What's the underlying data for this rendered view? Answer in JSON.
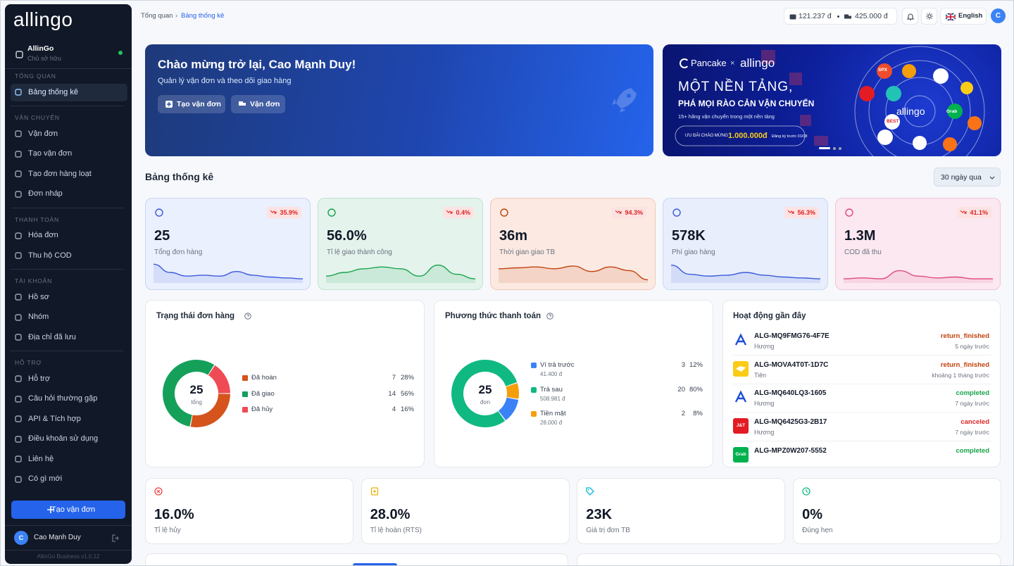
{
  "sidebar": {
    "logo": "allingo",
    "workspace": {
      "name": "AllinGo",
      "role": "Chủ sở hữu"
    },
    "sections": [
      {
        "title": "TỔNG QUAN",
        "items": [
          "Bảng thống kê"
        ]
      },
      {
        "title": "VẬN CHUYỂN",
        "items": [
          "Vận đơn",
          "Tạo vận đơn",
          "Tạo đơn hàng loạt",
          "Đơn nháp"
        ]
      },
      {
        "title": "THANH TOÁN",
        "items": [
          "Hóa đơn",
          "Thu hộ COD"
        ]
      },
      {
        "title": "TÀI KHOẢN",
        "items": [
          "Hồ sơ",
          "Nhóm",
          "Địa chỉ đã lưu"
        ]
      },
      {
        "title": "HỖ TRỢ",
        "items": [
          "Hỗ trợ",
          "Câu hỏi thường gặp",
          "API & Tích hợp",
          "Điều khoản sử dụng",
          "Liên hệ",
          "Có gì mới"
        ]
      }
    ],
    "cta": "Tạo vận đơn",
    "user": {
      "initial": "C",
      "name": "Cao Mạnh Duy"
    },
    "version": "AllinGo Business v1.0.12"
  },
  "topbar": {
    "breadcrumb": [
      "Tổng quan",
      "Bảng thống kê"
    ],
    "breadcrumb_sep": "›",
    "balances": [
      "121.237 đ",
      "425.000 đ"
    ],
    "language": "English",
    "avatar": "C"
  },
  "welcome": {
    "title": "Chào mừng trở lại, Cao Mạnh Duy!",
    "subtitle": "Quản lý vận đơn và theo dõi giao hàng",
    "buttons": [
      "Tạo vận đơn",
      "Vận đơn"
    ]
  },
  "banner": {
    "brand": "Pancake",
    "x": "×",
    "partner": "allingo",
    "headline": "MỘT NỀN TẢNG,",
    "subhead": "PHÁ MỌI RÀO CẢN VẬN CHUYỂN",
    "note": "15+ hãng vận chuyển trong một nền tảng",
    "promo": "ƯU ĐÃI CHÀO MỪNG",
    "amount": "1.000.000đ",
    "promo_tail": "Đăng ký trước 01/08",
    "hub": "allingo",
    "carriers": [
      "SPX",
      "Grab",
      "BEST"
    ]
  },
  "stats": {
    "title": "Bảng thống kê",
    "period": "30 ngày qua",
    "cards": [
      {
        "value": "25",
        "label": "Tổng đơn hàng",
        "change": "35.9%"
      },
      {
        "value": "56.0%",
        "label": "Tỉ lệ giao thành công",
        "change": "0.4%"
      },
      {
        "value": "36m",
        "label": "Thời gian giao TB",
        "change": "94.3%"
      },
      {
        "value": "578K",
        "label": "Phí giao hàng",
        "change": "56.3%"
      },
      {
        "value": "1.3M",
        "label": "COD đã thu",
        "change": "41.1%"
      }
    ]
  },
  "order_status": {
    "title": "Trạng thái đơn hàng",
    "total": 25,
    "total_label": "tổng",
    "items": [
      {
        "name": "Đã hoàn",
        "count": 7,
        "percent": "28%",
        "color": "#d4541c"
      },
      {
        "name": "Đã giao",
        "count": 14,
        "percent": "56%",
        "color": "#15a05a"
      },
      {
        "name": "Đã hủy",
        "count": 4,
        "percent": "16%",
        "color": "#ef4b55"
      }
    ]
  },
  "payment": {
    "title": "Phương thức thanh toán",
    "total": 25,
    "total_label": "đơn",
    "items": [
      {
        "name": "Ví trả trước",
        "amount": "41.400 đ",
        "count": 3,
        "percent": "12%",
        "color": "#3b82f6"
      },
      {
        "name": "Trả sau",
        "amount": "508.981 đ",
        "count": 20,
        "percent": "80%",
        "color": "#10b981"
      },
      {
        "name": "Tiền mặt",
        "amount": "28.000 đ",
        "count": 2,
        "percent": "8%",
        "color": "#f59e0b"
      }
    ]
  },
  "activity": {
    "title": "Hoạt động gần đây",
    "rows": [
      {
        "code": "ALG-MQ9FMG76-4F7E",
        "user": "Hương",
        "status": "return_finished",
        "time": "5 ngày trước",
        "status_color": "#c2410c"
      },
      {
        "code": "ALG-MOVA4T0T-1D7C",
        "user": "Tiên",
        "status": "return_finished",
        "time": "khoảng 1 tháng trước",
        "status_color": "#c2410c"
      },
      {
        "code": "ALG-MQ640LQ3-1605",
        "user": "Hương",
        "status": "completed",
        "time": "7 ngày trước",
        "status_color": "#16a34a"
      },
      {
        "code": "ALG-MQ6425G3-2B17",
        "user": "Hương",
        "status": "canceled",
        "time": "7 ngày trước",
        "status_color": "#dc2626",
        "logo": "J&T"
      },
      {
        "code": "ALG-MPZ0W207-5552",
        "status": "completed",
        "status_color": "#16a34a",
        "logo": "Grab"
      }
    ]
  },
  "kpis": [
    {
      "value": "16.0%",
      "label": "Tỉ lệ hủy"
    },
    {
      "value": "28.0%",
      "label": "Tỉ lệ hoàn (RTS)"
    },
    {
      "value": "23K",
      "label": "Giá trị đơn TB"
    },
    {
      "value": "0%",
      "label": "Đúng hẹn"
    }
  ]
}
